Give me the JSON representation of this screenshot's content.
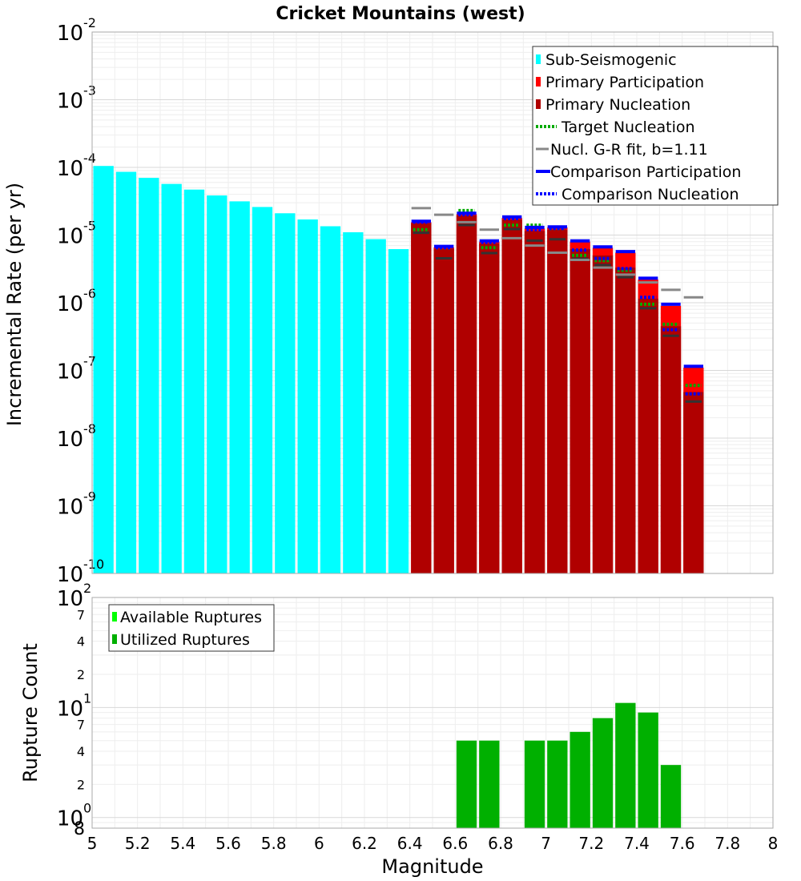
{
  "chart_data": [
    {
      "type": "bar",
      "title": "Cricket Mountains (west)",
      "xlabel": "Magnitude",
      "ylabel": "Incremental Rate (per yr)",
      "yscale": "log",
      "ylim": [
        1e-10,
        0.01
      ],
      "xlim": [
        5,
        8
      ],
      "grid": true,
      "bin_width": 0.1,
      "y_ticks": [
        {
          "base": "10",
          "exp": "-10",
          "value": 1e-10
        },
        {
          "base": "10",
          "exp": "-9",
          "value": 1e-09
        },
        {
          "base": "10",
          "exp": "-8",
          "value": 1e-08
        },
        {
          "base": "10",
          "exp": "-7",
          "value": 1e-07
        },
        {
          "base": "10",
          "exp": "-6",
          "value": 1e-06
        },
        {
          "base": "10",
          "exp": "-5",
          "value": 1e-05
        },
        {
          "base": "10",
          "exp": "-4",
          "value": 0.0001
        },
        {
          "base": "10",
          "exp": "-3",
          "value": 0.001
        },
        {
          "base": "10",
          "exp": "-2",
          "value": 0.01
        }
      ],
      "legend_position": "top-right",
      "legend": [
        {
          "label": "Sub-Seismogenic",
          "color": "#00ffff",
          "style": "box"
        },
        {
          "label": "Primary Participation",
          "color": "#ff0000",
          "style": "box"
        },
        {
          "label": "Primary Nucleation",
          "color": "#b00000",
          "style": "box"
        },
        {
          "label": "Target Nucleation",
          "color": "#00aa00",
          "style": "dotted"
        },
        {
          "label": "Nucl. G-R fit, b=1.11",
          "color": "#888888",
          "style": "solid"
        },
        {
          "label": "Comparison Participation",
          "color": "#0000ff",
          "style": "thick"
        },
        {
          "label": "Comparison Nucleation",
          "color": "#0000ff",
          "style": "dotted"
        }
      ],
      "series": [
        {
          "name": "Sub-Seismogenic",
          "color": "#00ffff",
          "x": [
            5.05,
            5.15,
            5.25,
            5.35,
            5.45,
            5.55,
            5.65,
            5.75,
            5.85,
            5.95,
            6.05,
            6.15,
            6.25,
            6.35
          ],
          "values": [
            0.000105,
            8.6e-05,
            7e-05,
            5.7e-05,
            4.7e-05,
            3.85e-05,
            3.15e-05,
            2.6e-05,
            2.1e-05,
            1.7e-05,
            1.35e-05,
            1.1e-05,
            8.7e-06,
            6.2e-06
          ]
        },
        {
          "name": "Primary Participation",
          "color": "#ff0000",
          "x": [
            6.45,
            6.55,
            6.65,
            6.75,
            6.85,
            6.95,
            7.05,
            7.15,
            7.25,
            7.35,
            7.45,
            7.55,
            7.65
          ],
          "values": [
            1.55e-05,
            6.6e-06,
            2.05e-05,
            8e-06,
            1.8e-05,
            1.25e-05,
            1.3e-05,
            8e-06,
            6.5e-06,
            5.5e-06,
            2.2e-06,
            9e-07,
            1.1e-07
          ]
        },
        {
          "name": "Primary Nucleation",
          "color": "#b00000",
          "x": [
            6.45,
            6.55,
            6.65,
            6.75,
            6.85,
            6.95,
            7.05,
            7.15,
            7.25,
            7.35,
            7.45,
            7.55,
            7.65
          ],
          "values": [
            1.5e-05,
            6.3e-06,
            1.95e-05,
            7.5e-06,
            1.7e-05,
            1.15e-05,
            1.2e-05,
            6.2e-06,
            5e-06,
            3.3e-06,
            1.15e-06,
            4.5e-07,
            4.8e-08
          ]
        },
        {
          "name": "Target Nucleation",
          "color": "#00aa00",
          "x": [
            6.45,
            6.55,
            6.65,
            6.75,
            6.85,
            6.95,
            7.05,
            7.15,
            7.25,
            7.35,
            7.45,
            7.55,
            7.65
          ],
          "values": [
            1.2e-05,
            6.5e-06,
            2.3e-05,
            6.5e-06,
            1.4e-05,
            1.4e-05,
            1.25e-05,
            5e-06,
            4.2e-06,
            3e-06,
            9.5e-07,
            4.8e-07,
            6e-08
          ]
        },
        {
          "name": "Nucl. G-R fit, b=1.11",
          "color": "#888888",
          "x": [
            6.45,
            6.55,
            6.65,
            6.75,
            6.85,
            6.95,
            7.05,
            7.15,
            7.25,
            7.35,
            7.45,
            7.55,
            7.65
          ],
          "values": [
            2.5e-05,
            2e-05,
            1.55e-05,
            1.2e-05,
            9e-06,
            7e-06,
            5.5e-06,
            4.3e-06,
            3.3e-06,
            2.6e-06,
            2e-06,
            1.55e-06,
            1.2e-06
          ]
        },
        {
          "name": "Comparison Participation",
          "color": "#0000ff",
          "x": [
            6.45,
            6.55,
            6.65,
            6.75,
            6.85,
            6.95,
            7.05,
            7.15,
            7.25,
            7.35,
            7.45,
            7.55,
            7.65
          ],
          "values": [
            1.6e-05,
            6.8e-06,
            2.1e-05,
            8.2e-06,
            1.85e-05,
            1.3e-05,
            1.32e-05,
            8.2e-06,
            6.7e-06,
            5.7e-06,
            2.3e-06,
            9.5e-07,
            1.15e-07
          ]
        },
        {
          "name": "Comparison Nucleation",
          "color": "#0000ff",
          "x": [
            6.45,
            6.55,
            6.65,
            6.75,
            6.85,
            6.95,
            7.05,
            7.15,
            7.25,
            7.35,
            7.45,
            7.55,
            7.65
          ],
          "values": [
            1.55e-05,
            6.5e-06,
            2e-05,
            7.8e-06,
            1.75e-05,
            1.2e-05,
            1.25e-05,
            6e-06,
            4.5e-06,
            3.2e-06,
            1.2e-06,
            4e-07,
            4.5e-08
          ]
        }
      ]
    },
    {
      "type": "bar",
      "xlabel": "Magnitude",
      "ylabel": "Rupture Count",
      "yscale": "log",
      "ylim": [
        0.8,
        100
      ],
      "xlim": [
        5,
        8
      ],
      "grid": true,
      "bin_width": 0.1,
      "x_ticks": [
        "5",
        "5.2",
        "5.4",
        "5.6",
        "5.8",
        "6",
        "6.2",
        "6.4",
        "6.6",
        "6.8",
        "7",
        "7.2",
        "7.4",
        "7.6",
        "7.8",
        "8"
      ],
      "x_tick_values": [
        5,
        5.2,
        5.4,
        5.6,
        5.8,
        6,
        6.2,
        6.4,
        6.6,
        6.8,
        7,
        7.2,
        7.4,
        7.6,
        7.8,
        8
      ],
      "y_ticks": [
        {
          "base": "10",
          "exp": "0",
          "value": 1
        },
        {
          "base": "10",
          "exp": "1",
          "value": 10
        },
        {
          "base": "10",
          "exp": "2",
          "value": 100
        }
      ],
      "y_minor_labels": [
        {
          "label": "8",
          "value": 0.8
        },
        {
          "label": "2",
          "value": 2
        },
        {
          "label": "4",
          "value": 4
        },
        {
          "label": "7",
          "value": 7
        },
        {
          "label": "2",
          "value": 20
        },
        {
          "label": "4",
          "value": 40
        },
        {
          "label": "7",
          "value": 70
        }
      ],
      "legend_position": "top-left",
      "legend": [
        {
          "label": "Available Ruptures",
          "color": "#00ff00",
          "style": "box"
        },
        {
          "label": "Utilized Ruptures",
          "color": "#00b000",
          "style": "box"
        }
      ],
      "series": [
        {
          "name": "Utilized Ruptures",
          "color": "#00b000",
          "x": [
            6.65,
            6.75,
            6.95,
            7.05,
            7.15,
            7.25,
            7.35,
            7.45,
            7.55
          ],
          "values": [
            5,
            5,
            5,
            5,
            6,
            8,
            11,
            9,
            3
          ]
        }
      ]
    }
  ]
}
